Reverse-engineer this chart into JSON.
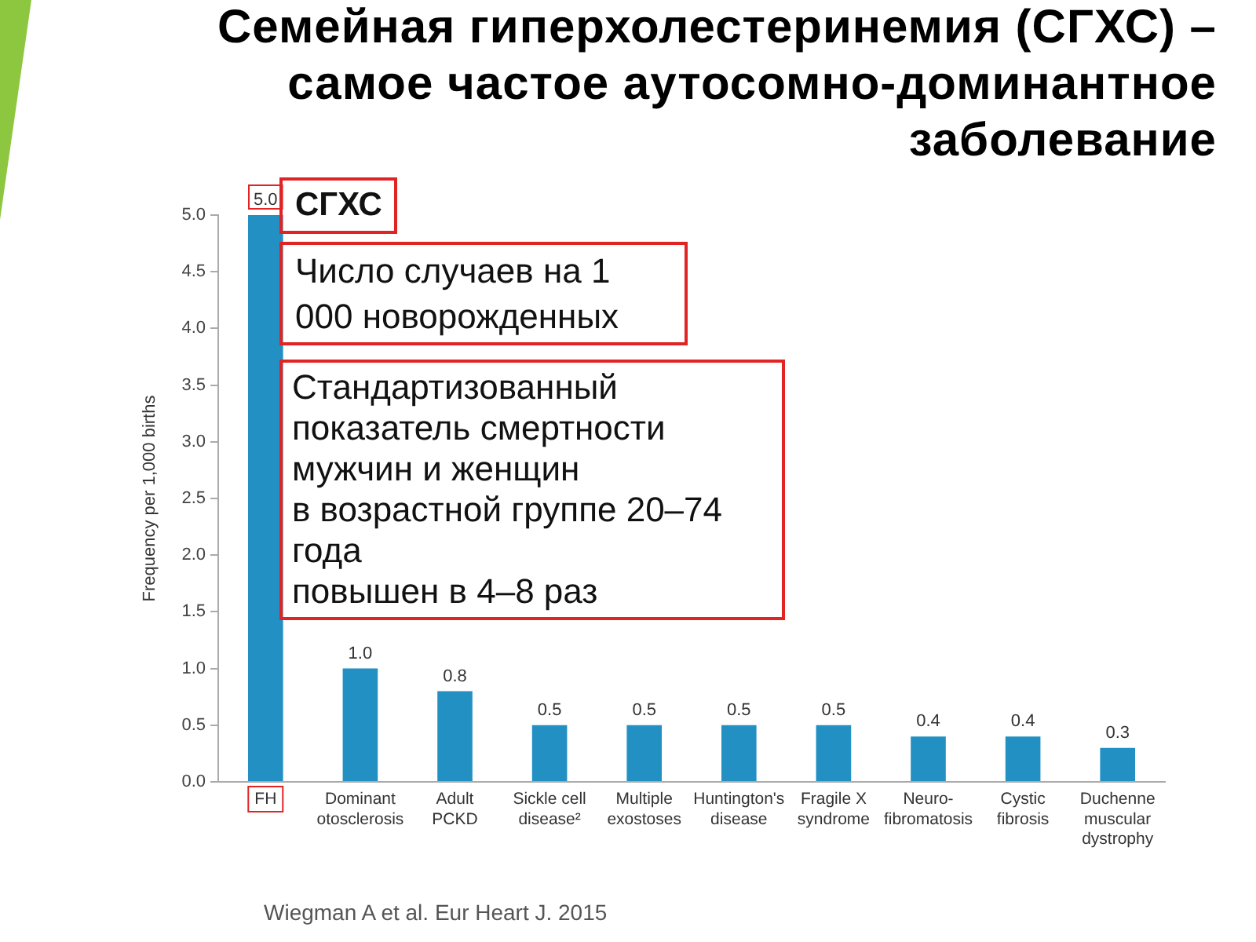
{
  "chart_data": {
    "type": "bar",
    "title": "Семейная гиперхолестеринемия (СГХС) – самое частое аутосомно-доминантное заболевание",
    "ylabel": "Frequency per 1,000 births",
    "categories": [
      "FH",
      "Dominant otosclerosis",
      "Adult PCKD",
      "Sickle cell disease²",
      "Multiple exostoses",
      "Huntington's disease",
      "Fragile X syndrome",
      "Neuro-fibromatosis",
      "Cystic fibrosis",
      "Duchenne muscular dystrophy"
    ],
    "values": [
      5.0,
      1.0,
      0.8,
      0.5,
      0.5,
      0.5,
      0.5,
      0.4,
      0.4,
      0.3
    ],
    "value_labels": [
      "5.0",
      "1.0",
      "0.8",
      "0.5",
      "0.5",
      "0.5",
      "0.5",
      "0.4",
      "0.4",
      "0.3"
    ],
    "color": "#2390c4",
    "ylim": [
      0,
      5
    ],
    "yticks": [
      {
        "value": 0,
        "label": "0.0"
      },
      0.5,
      {
        "value": 1,
        "label": "1.0"
      },
      1.5,
      {
        "value": 2,
        "label": "2.0"
      },
      2.5,
      {
        "value": 3,
        "label": "3.0"
      },
      3.5,
      {
        "value": 4,
        "label": "4.0"
      },
      4.5,
      {
        "value": 5,
        "label": "5.0"
      }
    ],
    "legend": false,
    "annotations": [
      "СГХС",
      "Число случаев на 1 000 новорожденных",
      "Стандартизованный\nпоказатель смертности\nмужчин и женщин\nв возрастной группе 20–74 года\nповышен в 4–8 раз",
      "Wiegman A et al. Eur Heart J. 2015"
    ]
  }
}
